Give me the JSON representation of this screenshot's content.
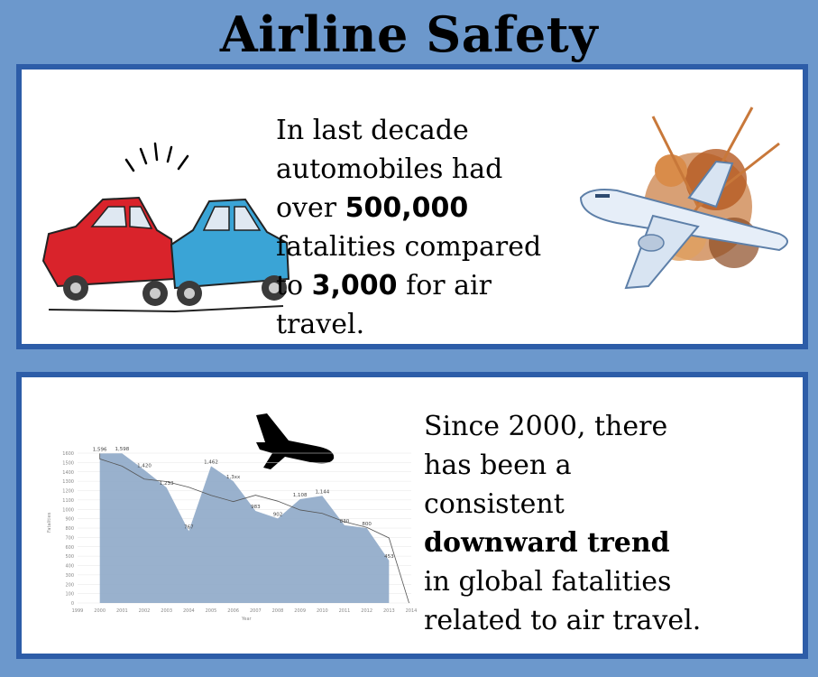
{
  "title": "Airline Safety",
  "panel1": {
    "line1": "In last decade",
    "line2": "automobiles had",
    "line3_pre": "over ",
    "line3_num": "500,000",
    "line4": "fatalities compared",
    "line5_pre": "to ",
    "line5_num": "3,000",
    "line5_post": " for air",
    "line6": "travel."
  },
  "panel2": {
    "line1": "Since 2000, there",
    "line2": "has been a",
    "line3": "consistent",
    "line4": "downward trend",
    "line5": "in global fatalities",
    "line6": "related to air travel."
  },
  "chart_data": {
    "type": "area",
    "x": [
      2000,
      2001,
      2002,
      2003,
      2004,
      2005,
      2006,
      2007,
      2008,
      2009,
      2010,
      2011,
      2012,
      2013
    ],
    "values": [
      1596,
      1598,
      1420,
      1233,
      767,
      1462,
      1300,
      983,
      902,
      1108,
      1144,
      830,
      800,
      453
    ],
    "data_labels": [
      "1,596",
      "1,598",
      "1,420",
      "1,233",
      "767",
      "1,462",
      "1,3xx",
      "983",
      "902",
      "1,108",
      "1,144",
      "830",
      "800",
      "453"
    ],
    "x_ticks": [
      "1999",
      "2000",
      "2001",
      "2002",
      "2003",
      "2004",
      "2005",
      "2006",
      "2007",
      "2008",
      "2009",
      "2010",
      "2011",
      "2012",
      "2013",
      "2014"
    ],
    "y_ticks": [
      "0",
      "100",
      "200",
      "300",
      "400",
      "500",
      "600",
      "700",
      "800",
      "900",
      "1000",
      "1100",
      "1200",
      "1300",
      "1400",
      "1500",
      "1600"
    ],
    "xlabel": "Year",
    "ylabel": "Fatalities",
    "ylim": [
      0,
      1600
    ],
    "xlim": [
      1999,
      2014
    ],
    "trendline": true,
    "colors": {
      "area": "#8ea8c8",
      "trend": "#555555"
    }
  }
}
